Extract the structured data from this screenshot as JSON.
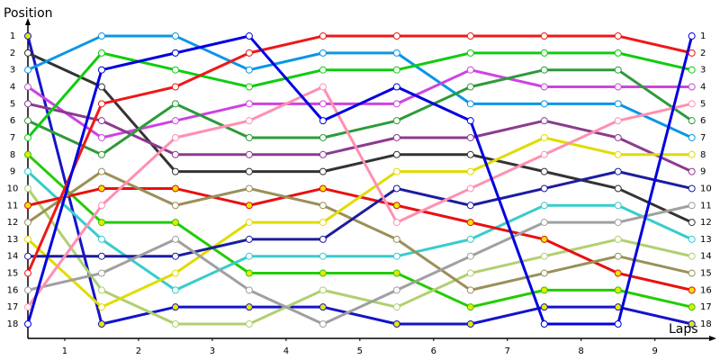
{
  "chart_data": {
    "type": "line",
    "y_label": "Position",
    "x_label": "Laps",
    "x": [
      0,
      1,
      2,
      3,
      4,
      5,
      6,
      7,
      8,
      9
    ],
    "xlim": [
      0,
      9.26
    ],
    "xticks": [
      {
        "value": 0.5,
        "label": "1"
      },
      {
        "value": 1.5,
        "label": "2"
      },
      {
        "value": 2.5,
        "label": "3"
      },
      {
        "value": 3.5,
        "label": "4"
      },
      {
        "value": 4.5,
        "label": "5"
      },
      {
        "value": 5.5,
        "label": "6"
      },
      {
        "value": 6.5,
        "label": "7"
      },
      {
        "value": 7.5,
        "label": "8"
      },
      {
        "value": 8.5,
        "label": "9"
      }
    ],
    "ylim": [
      18.85,
      0.2
    ],
    "yticks": [
      1,
      2,
      3,
      4,
      5,
      6,
      7,
      8,
      9,
      10,
      11,
      12,
      13,
      14,
      15,
      16,
      17,
      18
    ],
    "series": [
      {
        "color": "#1414c8",
        "marker": "#e8e800",
        "values": [
          1,
          18,
          17,
          17,
          17,
          18,
          18,
          17,
          17,
          18
        ]
      },
      {
        "color": "#333333",
        "marker": "#ffffff",
        "values": [
          2,
          4,
          9,
          9,
          9,
          8,
          8,
          9,
          10,
          12
        ]
      },
      {
        "color": "#0a96e6",
        "marker": "#ffffff",
        "values": [
          3,
          1,
          1,
          3,
          2,
          2,
          5,
          5,
          5,
          7
        ]
      },
      {
        "color": "#cc44e0",
        "marker": "#ffffff",
        "values": [
          4,
          7,
          6,
          5,
          5,
          5,
          3,
          4,
          4,
          4
        ]
      },
      {
        "color": "#8c3a90",
        "marker": "#ffffff",
        "values": [
          5,
          6,
          8,
          8,
          8,
          7,
          7,
          6,
          7,
          9
        ]
      },
      {
        "color": "#2e9a3a",
        "marker": "#ffffff",
        "values": [
          6,
          8,
          5,
          7,
          7,
          6,
          4,
          3,
          3,
          6
        ]
      },
      {
        "color": "#10cc10",
        "marker": "#ffffff",
        "values": [
          7,
          2,
          3,
          4,
          3,
          3,
          2,
          2,
          2,
          3
        ]
      },
      {
        "color": "#22cc00",
        "marker": "#e8e800",
        "values": [
          8,
          12,
          12,
          15,
          15,
          15,
          17,
          16,
          16,
          17
        ]
      },
      {
        "color": "#38cccc",
        "marker": "#ffffff",
        "values": [
          9,
          13,
          16,
          14,
          14,
          14,
          13,
          11,
          11,
          13
        ]
      },
      {
        "color": "#b0d070",
        "marker": "#ffffff",
        "values": [
          10,
          16,
          18,
          18,
          16,
          17,
          15,
          14,
          13,
          14
        ]
      },
      {
        "color": "#e81010",
        "marker": "#e8e800",
        "values": [
          11,
          10,
          10,
          11,
          10,
          11,
          12,
          13,
          15,
          16
        ]
      },
      {
        "color": "#9a9058",
        "marker": "#ffffff",
        "values": [
          12,
          9,
          11,
          10,
          11,
          13,
          16,
          15,
          14,
          15
        ]
      },
      {
        "color": "#e0dc00",
        "marker": "#ffffff",
        "values": [
          13,
          17,
          15,
          12,
          12,
          9,
          9,
          7,
          8,
          8
        ]
      },
      {
        "color": "#1c1ca0",
        "marker": "#ffffff",
        "values": [
          14,
          14,
          14,
          13,
          13,
          10,
          11,
          10,
          9,
          10
        ]
      },
      {
        "color": "#ee1818",
        "marker": "#ffffff",
        "values": [
          15,
          5,
          4,
          2,
          1,
          1,
          1,
          1,
          1,
          2
        ]
      },
      {
        "color": "#a0a0a0",
        "marker": "#ffffff",
        "values": [
          16,
          15,
          13,
          16,
          18,
          16,
          14,
          12,
          12,
          11
        ]
      },
      {
        "color": "#ff90b0",
        "marker": "#ffffff",
        "values": [
          17,
          11,
          7,
          6,
          4,
          12,
          10,
          8,
          6,
          5
        ]
      },
      {
        "color": "#0000e0",
        "marker": "#ffffff",
        "values": [
          18,
          3,
          2,
          1,
          6,
          4,
          6,
          18,
          18,
          1
        ]
      }
    ]
  }
}
